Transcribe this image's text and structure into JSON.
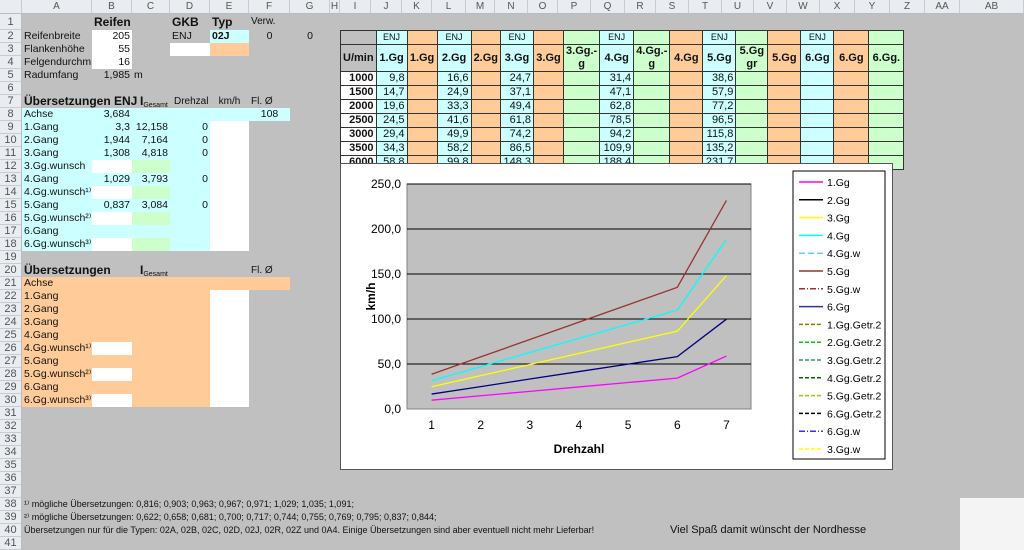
{
  "columns": [
    "A",
    "B",
    "C",
    "D",
    "E",
    "F",
    "G",
    "H",
    "I",
    "J",
    "K",
    "L",
    "M",
    "N",
    "O",
    "P",
    "Q",
    "R",
    "S",
    "T",
    "U",
    "V",
    "W",
    "X",
    "Y",
    "Z",
    "AA",
    "AB"
  ],
  "cells": {
    "B1": "Reifen",
    "D1": "GKB",
    "E1": "Typ",
    "F1": "Verw.",
    "A2": "Reifenbreite",
    "B2": "205",
    "D2": "ENJ",
    "E2": "02J",
    "F2": "0",
    "G2": "0",
    "A3": "Flankenhöhe",
    "B3": "55",
    "A4": "Felgendurchm",
    "B4": "16",
    "A5": "Radumfang",
    "B5": "1,985",
    "C5": "m",
    "A7": "Übersetzungen ENJ",
    "C7": "I|Gesamt",
    "D7": "Drehzal",
    "E7": "km/h",
    "F7": "Fl. Ø",
    "A8": "Achse",
    "B8": "3,684",
    "F8": "108",
    "A9": "1.Gang",
    "B9": "3,3",
    "C9": "12,158",
    "D9": "0",
    "A10": "2.Gang",
    "B10": "1,944",
    "C10": "7,164",
    "D10": "0",
    "A11": "3.Gang",
    "B11": "1,308",
    "C11": "4,818",
    "D11": "0",
    "A12": "3.Gg.wunsch",
    "A13": "4.Gang",
    "B13": "1,029",
    "C13": "3,793",
    "D13": "0",
    "A14": "4.Gg.wunsch¹⁾",
    "A15": "5.Gang",
    "B15": "0,837",
    "C15": "3,084",
    "D15": "0",
    "A16": "5.Gg.wunsch²⁾",
    "A17": "6.Gang",
    "A18": "6.Gg.wunsch³⁾",
    "A20": "Übersetzungen",
    "C20": "I|Gesamt",
    "F20": "Fl. Ø",
    "A21": "Achse",
    "A22": "1.Gang",
    "A23": "2.Gang",
    "A24": "3.Gang",
    "A25": "4.Gang",
    "A26": "4.Gg.wunsch¹⁾",
    "A27": "5.Gang",
    "A28": "5.Gg.wunsch²⁾",
    "A29": "6.Gang",
    "A30": "6.Gg.wunsch³⁾",
    "A38": "¹⁾ mögliche Übersetzungen: 0,816; 0,903; 0,963; 0,967; 0,971; 1,029; 1,035; 1,091;",
    "A39": "²⁾ mögliche Übersetzungen: 0,622; 0,658; 0,681; 0,700; 0,717; 0,744; 0,755; 0,769; 0,795; 0,837; 0,844;",
    "A40": "Übersetzungen nur für die Typen: 02A, 02B, 02C, 02D, 02J, 02R, 02Z und 0A4. Einige Übersetzungen sind aber eventuell nicht mehr Lieferbar!"
  },
  "footer": "Viel Spaß damit wünscht der Nordhesse",
  "speed_table": {
    "top": [
      "",
      "ENJ",
      "",
      "ENJ",
      "",
      "ENJ",
      "",
      "",
      "ENJ",
      "",
      "",
      "ENJ",
      "",
      "",
      "ENJ",
      "",
      ""
    ],
    "header": [
      "U/min",
      "1.Gg",
      "1.Gg",
      "2.Gg",
      "2.Gg",
      "3.Gg",
      "3.Gg",
      "3.Gg.-g",
      "4.Gg",
      "4.Gg.-g",
      "4.Gg",
      "5.Gg",
      "5.Gg gr",
      "5.Gg",
      "6.Gg",
      "6.Gg",
      "6.Gg."
    ],
    "rows": [
      [
        "1000",
        "9,8",
        "",
        "16,6",
        "",
        "24,7",
        "",
        "",
        "31,4",
        "",
        "",
        "38,6",
        "",
        "",
        "",
        "",
        ""
      ],
      [
        "1500",
        "14,7",
        "",
        "24,9",
        "",
        "37,1",
        "",
        "",
        "47,1",
        "",
        "",
        "57,9",
        "",
        "",
        "",
        "",
        ""
      ],
      [
        "2000",
        "19,6",
        "",
        "33,3",
        "",
        "49,4",
        "",
        "",
        "62,8",
        "",
        "",
        "77,2",
        "",
        "",
        "",
        "",
        ""
      ],
      [
        "2500",
        "24,5",
        "",
        "41,6",
        "",
        "61,8",
        "",
        "",
        "78,5",
        "",
        "",
        "96,5",
        "",
        "",
        "",
        "",
        ""
      ],
      [
        "3000",
        "29,4",
        "",
        "49,9",
        "",
        "74,2",
        "",
        "",
        "94,2",
        "",
        "",
        "115,8",
        "",
        "",
        "",
        "",
        ""
      ],
      [
        "3500",
        "34,3",
        "",
        "58,2",
        "",
        "86,5",
        "",
        "",
        "109,9",
        "",
        "",
        "135,2",
        "",
        "",
        "",
        "",
        ""
      ],
      [
        "6000",
        "58,8",
        "",
        "99,8",
        "",
        "148,3",
        "",
        "",
        "188,4",
        "",
        "",
        "231,7",
        "",
        "",
        "",
        "",
        ""
      ]
    ]
  },
  "chart_data": {
    "type": "line",
    "xlabel": "Drehzahl",
    "ylabel": "km/h",
    "ylim": [
      0,
      250
    ],
    "yticks": [
      "0,0",
      "50,0",
      "100,0",
      "150,0",
      "200,0",
      "250,0"
    ],
    "x": [
      1,
      2,
      3,
      4,
      5,
      6,
      7
    ],
    "xticks": [
      "1",
      "2",
      "3",
      "4",
      "5",
      "6",
      "7"
    ],
    "series": [
      {
        "name": "1.Gg",
        "color": "#ff00ff",
        "values": [
          9.8,
          14.7,
          19.6,
          24.5,
          29.4,
          34.3,
          58.8
        ]
      },
      {
        "name": "2.Gg",
        "color": "#000080",
        "values": [
          16.6,
          24.9,
          33.3,
          41.6,
          49.9,
          58.2,
          99.8
        ]
      },
      {
        "name": "3.Gg",
        "color": "#ffff00",
        "values": [
          24.7,
          37.1,
          49.4,
          61.8,
          74.2,
          86.5,
          148.3
        ]
      },
      {
        "name": "4.Gg",
        "color": "#00ffff",
        "values": [
          31.4,
          47.1,
          62.8,
          78.5,
          94.2,
          109.9,
          188.4
        ]
      },
      {
        "name": "5.Gg",
        "color": "#993333",
        "values": [
          38.6,
          57.9,
          77.2,
          96.5,
          115.8,
          135.2,
          231.7
        ]
      }
    ],
    "legend": [
      {
        "name": "1.Gg",
        "color": "#ff00ff",
        "dash": ""
      },
      {
        "name": "2.Gg",
        "color": "#000000",
        "dash": ""
      },
      {
        "name": "3.Gg",
        "color": "#ffff00",
        "dash": ""
      },
      {
        "name": "4.Gg",
        "color": "#00ffff",
        "dash": ""
      },
      {
        "name": "4.Gg.w",
        "color": "#66ccff",
        "dash": "6,3"
      },
      {
        "name": "5.Gg",
        "color": "#993333",
        "dash": ""
      },
      {
        "name": "5.Gg.w",
        "color": "#993333",
        "dash": "6,2,1,2"
      },
      {
        "name": "6.Gg",
        "color": "#333399",
        "dash": ""
      },
      {
        "name": "1.Gg.Getr.2",
        "color": "#808000",
        "dash": "4,2"
      },
      {
        "name": "2.Gg.Getr.2",
        "color": "#00cc00",
        "dash": "4,2"
      },
      {
        "name": "3.Gg.Getr.2",
        "color": "#339966",
        "dash": "4,2"
      },
      {
        "name": "4.Gg.Getr.2",
        "color": "#006600",
        "dash": "4,2"
      },
      {
        "name": "5.Gg.Getr.2",
        "color": "#99cc00",
        "dash": "4,2"
      },
      {
        "name": "6.Gg.Getr.2",
        "color": "#000000",
        "dash": "4,2"
      },
      {
        "name": "6.Gg.w",
        "color": "#3333ff",
        "dash": "6,2,1,2"
      },
      {
        "name": "3.Gg.w",
        "color": "#ffff00",
        "dash": "4,2"
      }
    ]
  }
}
